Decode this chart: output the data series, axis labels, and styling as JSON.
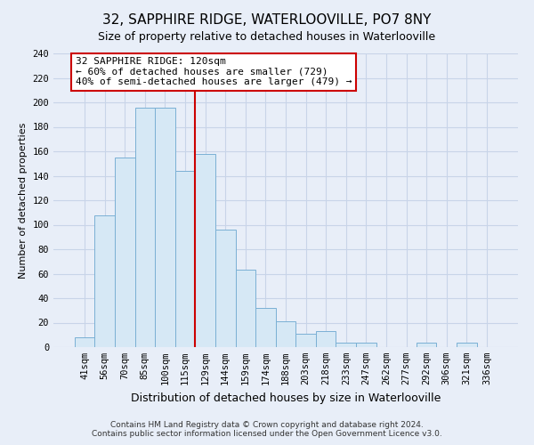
{
  "title": "32, SAPPHIRE RIDGE, WATERLOOVILLE, PO7 8NY",
  "subtitle": "Size of property relative to detached houses in Waterlooville",
  "xlabel": "Distribution of detached houses by size in Waterlooville",
  "ylabel": "Number of detached properties",
  "bin_labels": [
    "41sqm",
    "56sqm",
    "70sqm",
    "85sqm",
    "100sqm",
    "115sqm",
    "129sqm",
    "144sqm",
    "159sqm",
    "174sqm",
    "188sqm",
    "203sqm",
    "218sqm",
    "233sqm",
    "247sqm",
    "262sqm",
    "277sqm",
    "292sqm",
    "306sqm",
    "321sqm",
    "336sqm"
  ],
  "bar_heights": [
    8,
    108,
    155,
    196,
    196,
    144,
    158,
    96,
    63,
    32,
    21,
    11,
    13,
    4,
    4,
    0,
    0,
    4,
    0,
    4,
    0
  ],
  "bar_color": "#d6e8f5",
  "bar_edge_color": "#7ab0d4",
  "ylim": [
    0,
    240
  ],
  "yticks": [
    0,
    20,
    40,
    60,
    80,
    100,
    120,
    140,
    160,
    180,
    200,
    220,
    240
  ],
  "vline_x_index": 5.5,
  "annotation_title": "32 SAPPHIRE RIDGE: 120sqm",
  "annotation_line1": "← 60% of detached houses are smaller (729)",
  "annotation_line2": "40% of semi-detached houses are larger (479) →",
  "annotation_box_color": "#ffffff",
  "annotation_box_edge_color": "#cc0000",
  "vline_color": "#cc0000",
  "footer_line1": "Contains HM Land Registry data © Crown copyright and database right 2024.",
  "footer_line2": "Contains public sector information licensed under the Open Government Licence v3.0.",
  "background_color": "#e8eef8",
  "grid_color": "#c8d4e8",
  "title_fontsize": 11,
  "subtitle_fontsize": 9,
  "xlabel_fontsize": 9,
  "ylabel_fontsize": 8,
  "tick_fontsize": 7.5,
  "footer_fontsize": 6.5,
  "ann_fontsize": 8
}
